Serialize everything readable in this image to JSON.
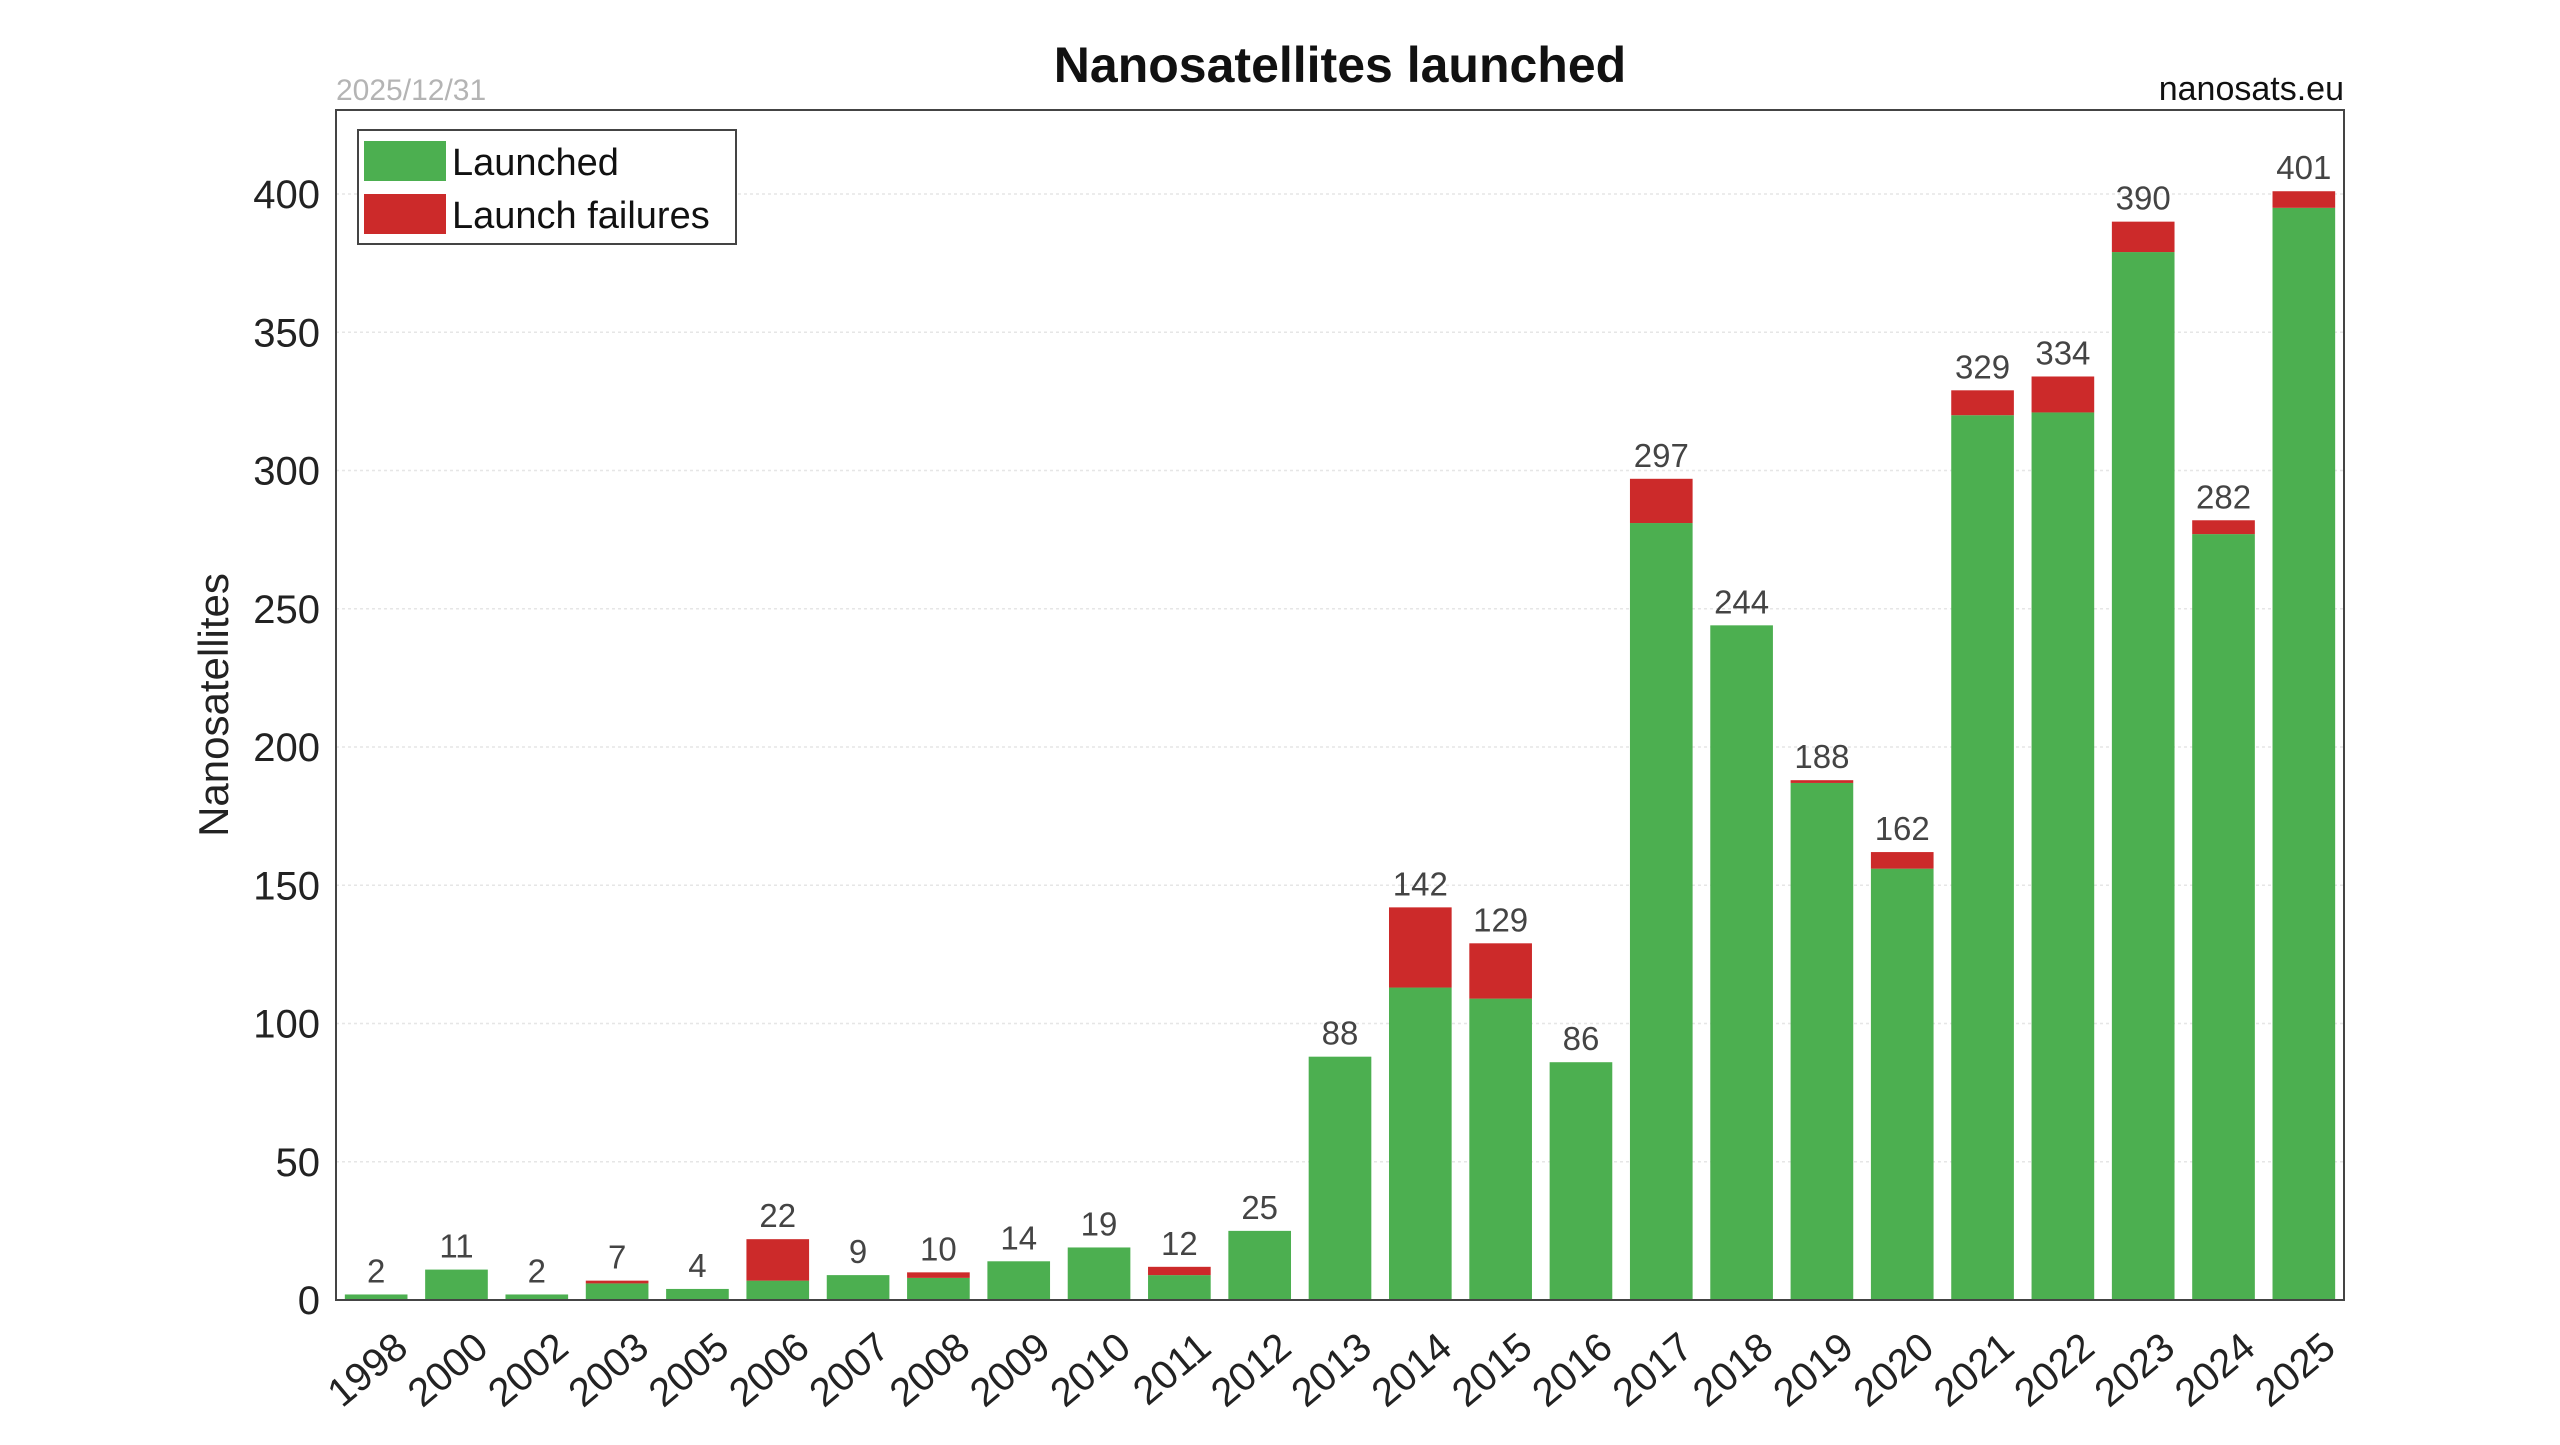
{
  "chart_data": {
    "type": "bar",
    "title": "Nanosatellites launched",
    "date_label": "2025/12/31",
    "source_label": "nanosats.eu",
    "ylabel": "Nanosatellites",
    "xlabel": "",
    "ylim": [
      0,
      430
    ],
    "yticks": [
      0,
      50,
      100,
      150,
      200,
      250,
      300,
      350,
      400
    ],
    "grid": true,
    "legend_position": "top-left",
    "stacked": true,
    "categories": [
      "1998",
      "2000",
      "2002",
      "2003",
      "2005",
      "2006",
      "2007",
      "2008",
      "2009",
      "2010",
      "2011",
      "2012",
      "2013",
      "2014",
      "2015",
      "2016",
      "2017",
      "2018",
      "2019",
      "2020",
      "2021",
      "2022",
      "2023",
      "2024",
      "2025"
    ],
    "series": [
      {
        "name": "Launched",
        "color": "#4caf50",
        "values": [
          2,
          11,
          2,
          6,
          4,
          7,
          9,
          8,
          14,
          19,
          9,
          25,
          88,
          113,
          109,
          86,
          281,
          244,
          187,
          156,
          320,
          321,
          379,
          277,
          395
        ]
      },
      {
        "name": "Launch failures",
        "color": "#cc2a2a",
        "values": [
          0,
          0,
          0,
          1,
          0,
          15,
          0,
          2,
          0,
          0,
          3,
          0,
          0,
          29,
          20,
          0,
          16,
          0,
          1,
          6,
          9,
          13,
          11,
          5,
          6
        ]
      }
    ],
    "totals": [
      2,
      11,
      2,
      7,
      4,
      22,
      9,
      10,
      14,
      19,
      12,
      25,
      88,
      142,
      129,
      86,
      297,
      244,
      188,
      162,
      329,
      334,
      390,
      282,
      401
    ]
  }
}
